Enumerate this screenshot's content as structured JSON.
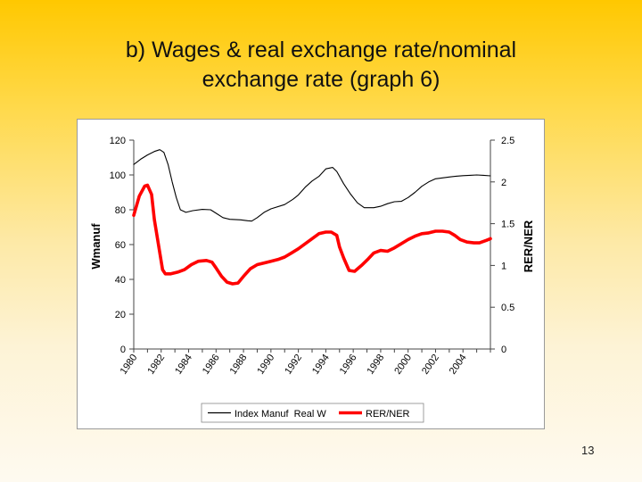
{
  "slide": {
    "title_line1": "b) Wages & real exchange rate/nominal",
    "title_line2": "exchange rate (graph 6)",
    "page_number": "13"
  },
  "chart_data": {
    "type": "line",
    "title": "",
    "xlabel": "",
    "ylabel_left": "Wmanuf",
    "ylabel_right": "RER/NER",
    "x_range": [
      1980,
      2006
    ],
    "x_ticks": [
      "1980",
      "1982",
      "1984",
      "1986",
      "1988",
      "1990",
      "1992",
      "1994",
      "1996",
      "1998",
      "2000",
      "2002",
      "2004"
    ],
    "ylim_left": [
      0,
      120
    ],
    "y_ticks_left": [
      "0",
      "20",
      "40",
      "60",
      "80",
      "100",
      "120"
    ],
    "ylim_right": [
      0,
      2.5
    ],
    "y_ticks_right": [
      "0",
      "0.5",
      "1",
      "1.5",
      "2",
      "2.5"
    ],
    "grid": false,
    "legend_position": "bottom-center",
    "series": [
      {
        "name": "Index Manuf  Real W",
        "axis": "left",
        "color": "#000000",
        "points": [
          [
            1980,
            106
          ],
          [
            1980.5,
            109
          ],
          [
            1981,
            111.5
          ],
          [
            1981.5,
            113.5
          ],
          [
            1981.9,
            114.5
          ],
          [
            1982.2,
            113
          ],
          [
            1982.5,
            106
          ],
          [
            1982.8,
            96
          ],
          [
            1983.1,
            87
          ],
          [
            1983.4,
            80
          ],
          [
            1983.8,
            78.5
          ],
          [
            1984.3,
            79.5
          ],
          [
            1985,
            80.2
          ],
          [
            1985.6,
            80
          ],
          [
            1986,
            78
          ],
          [
            1986.5,
            75.5
          ],
          [
            1987,
            74.5
          ],
          [
            1987.8,
            74.2
          ],
          [
            1988.3,
            73.7
          ],
          [
            1988.6,
            73.5
          ],
          [
            1989,
            75.5
          ],
          [
            1989.5,
            78.5
          ],
          [
            1990,
            80.5
          ],
          [
            1991,
            83
          ],
          [
            1991.6,
            86
          ],
          [
            1992,
            88.5
          ],
          [
            1992.5,
            93
          ],
          [
            1993,
            96.5
          ],
          [
            1993.5,
            99.2
          ],
          [
            1994,
            103.5
          ],
          [
            1994.5,
            104.3
          ],
          [
            1994.8,
            102
          ],
          [
            1995.3,
            95
          ],
          [
            1995.8,
            89
          ],
          [
            1996.3,
            84
          ],
          [
            1996.8,
            81.2
          ],
          [
            1997.5,
            81.2
          ],
          [
            1998,
            82
          ],
          [
            1998.5,
            83.5
          ],
          [
            1999,
            84.6
          ],
          [
            1999.5,
            84.8
          ],
          [
            2000,
            87
          ],
          [
            2000.5,
            90
          ],
          [
            2001,
            93.5
          ],
          [
            2001.5,
            96
          ],
          [
            2002,
            97.8
          ],
          [
            2002.5,
            98.3
          ],
          [
            2003,
            98.8
          ],
          [
            2003.5,
            99.3
          ],
          [
            2004,
            99.6
          ],
          [
            2004.5,
            99.8
          ],
          [
            2005,
            100
          ],
          [
            2005.5,
            99.8
          ],
          [
            2006,
            99.5
          ]
        ]
      },
      {
        "name": "RER/NER",
        "axis": "right",
        "color": "#ff0000",
        "points": [
          [
            1980,
            1.6
          ],
          [
            1980.4,
            1.83
          ],
          [
            1980.8,
            1.95
          ],
          [
            1981,
            1.96
          ],
          [
            1981.3,
            1.85
          ],
          [
            1981.5,
            1.55
          ],
          [
            1981.8,
            1.25
          ],
          [
            1982.1,
            0.95
          ],
          [
            1982.3,
            0.9
          ],
          [
            1982.7,
            0.9
          ],
          [
            1983.2,
            0.92
          ],
          [
            1983.7,
            0.95
          ],
          [
            1984.2,
            1.01
          ],
          [
            1984.7,
            1.05
          ],
          [
            1985.3,
            1.06
          ],
          [
            1985.7,
            1.04
          ],
          [
            1986,
            0.97
          ],
          [
            1986.4,
            0.87
          ],
          [
            1986.8,
            0.8
          ],
          [
            1987.2,
            0.78
          ],
          [
            1987.6,
            0.79
          ],
          [
            1988,
            0.87
          ],
          [
            1988.5,
            0.96
          ],
          [
            1989,
            1.01
          ],
          [
            1989.5,
            1.03
          ],
          [
            1990,
            1.05
          ],
          [
            1990.5,
            1.07
          ],
          [
            1991,
            1.1
          ],
          [
            1991.5,
            1.15
          ],
          [
            1992,
            1.2
          ],
          [
            1992.5,
            1.26
          ],
          [
            1993,
            1.32
          ],
          [
            1993.5,
            1.38
          ],
          [
            1994,
            1.4
          ],
          [
            1994.4,
            1.4
          ],
          [
            1994.8,
            1.36
          ],
          [
            1995,
            1.22
          ],
          [
            1995.3,
            1.09
          ],
          [
            1995.7,
            0.94
          ],
          [
            1996.1,
            0.93
          ],
          [
            1996.6,
            1
          ],
          [
            1997.1,
            1.08
          ],
          [
            1997.5,
            1.15
          ],
          [
            1998,
            1.18
          ],
          [
            1998.5,
            1.17
          ],
          [
            1999,
            1.21
          ],
          [
            1999.5,
            1.26
          ],
          [
            2000,
            1.31
          ],
          [
            2000.5,
            1.35
          ],
          [
            2001,
            1.38
          ],
          [
            2001.5,
            1.39
          ],
          [
            2002,
            1.41
          ],
          [
            2002.5,
            1.41
          ],
          [
            2003,
            1.4
          ],
          [
            2003.4,
            1.36
          ],
          [
            2003.8,
            1.31
          ],
          [
            2004.3,
            1.28
          ],
          [
            2004.8,
            1.27
          ],
          [
            2005.2,
            1.27
          ],
          [
            2005.7,
            1.3
          ],
          [
            2006,
            1.32
          ]
        ]
      }
    ]
  }
}
